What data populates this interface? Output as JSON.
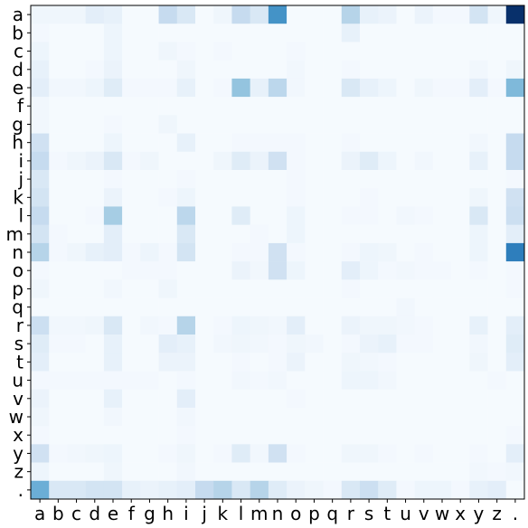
{
  "chart_data": {
    "type": "heatmap",
    "title": "",
    "xlabel": "",
    "ylabel": "",
    "x_labels": [
      "a",
      "b",
      "c",
      "d",
      "e",
      "f",
      "g",
      "h",
      "i",
      "j",
      "k",
      "l",
      "m",
      "n",
      "o",
      "p",
      "q",
      "r",
      "s",
      "t",
      "u",
      "v",
      "w",
      "x",
      "y",
      "z",
      "."
    ],
    "y_labels": [
      "a",
      "b",
      "c",
      "d",
      "e",
      "f",
      "g",
      "h",
      "i",
      "j",
      "k",
      "l",
      "m",
      "n",
      "o",
      "p",
      "q",
      "r",
      "s",
      "t",
      "u",
      "v",
      "w",
      "x",
      "y",
      "z",
      "."
    ],
    "colormap": "Blues",
    "colormap_stops": [
      "#f7fbff",
      "#deebf7",
      "#c6dbef",
      "#9ecae1",
      "#6baed6",
      "#4292c6",
      "#2171b5",
      "#08519c",
      "#08306b"
    ],
    "value_range": [
      0,
      1
    ],
    "grid": false,
    "matrix": [
      [
        0.04,
        0.04,
        0.04,
        0.1,
        0.08,
        0.01,
        0.01,
        0.25,
        0.15,
        0.01,
        0.04,
        0.25,
        0.15,
        0.62,
        0.01,
        0.01,
        0.01,
        0.3,
        0.08,
        0.06,
        0.01,
        0.06,
        0.02,
        0.02,
        0.18,
        0.04,
        1.0
      ],
      [
        0.02,
        0.01,
        0.01,
        0.01,
        0.05,
        0.01,
        0.01,
        0.01,
        0.01,
        0.01,
        0.01,
        0.01,
        0.01,
        0.01,
        0.01,
        0.01,
        0.01,
        0.08,
        0.01,
        0.01,
        0.01,
        0.01,
        0.01,
        0.01,
        0.01,
        0.01,
        0.01
      ],
      [
        0.05,
        0.01,
        0.01,
        0.01,
        0.05,
        0.01,
        0.01,
        0.04,
        0.02,
        0.01,
        0.02,
        0.01,
        0.01,
        0.01,
        0.02,
        0.01,
        0.01,
        0.01,
        0.01,
        0.01,
        0.01,
        0.01,
        0.01,
        0.01,
        0.01,
        0.01,
        0.01
      ],
      [
        0.08,
        0.01,
        0.01,
        0.02,
        0.06,
        0.01,
        0.01,
        0.01,
        0.04,
        0.01,
        0.01,
        0.01,
        0.01,
        0.01,
        0.03,
        0.01,
        0.01,
        0.02,
        0.01,
        0.01,
        0.01,
        0.01,
        0.01,
        0.01,
        0.03,
        0.01,
        0.04
      ],
      [
        0.1,
        0.03,
        0.03,
        0.05,
        0.12,
        0.02,
        0.02,
        0.02,
        0.08,
        0.01,
        0.02,
        0.4,
        0.08,
        0.28,
        0.03,
        0.01,
        0.01,
        0.15,
        0.08,
        0.05,
        0.01,
        0.04,
        0.02,
        0.02,
        0.1,
        0.02,
        0.45
      ],
      [
        0.03,
        0.01,
        0.01,
        0.01,
        0.01,
        0.01,
        0.01,
        0.01,
        0.01,
        0.01,
        0.01,
        0.01,
        0.01,
        0.01,
        0.01,
        0.01,
        0.01,
        0.01,
        0.01,
        0.01,
        0.01,
        0.01,
        0.01,
        0.01,
        0.01,
        0.01,
        0.01
      ],
      [
        0.03,
        0.01,
        0.01,
        0.01,
        0.02,
        0.01,
        0.01,
        0.04,
        0.01,
        0.01,
        0.01,
        0.01,
        0.01,
        0.01,
        0.01,
        0.01,
        0.01,
        0.01,
        0.01,
        0.01,
        0.01,
        0.01,
        0.01,
        0.01,
        0.01,
        0.01,
        0.01
      ],
      [
        0.2,
        0.01,
        0.01,
        0.01,
        0.05,
        0.01,
        0.01,
        0.01,
        0.08,
        0.01,
        0.01,
        0.02,
        0.02,
        0.02,
        0.02,
        0.01,
        0.01,
        0.02,
        0.01,
        0.01,
        0.01,
        0.01,
        0.01,
        0.01,
        0.03,
        0.01,
        0.25
      ],
      [
        0.25,
        0.02,
        0.04,
        0.06,
        0.15,
        0.02,
        0.04,
        0.01,
        0.01,
        0.01,
        0.04,
        0.12,
        0.06,
        0.2,
        0.02,
        0.01,
        0.01,
        0.06,
        0.12,
        0.05,
        0.01,
        0.03,
        0.01,
        0.01,
        0.08,
        0.01,
        0.25
      ],
      [
        0.15,
        0.01,
        0.01,
        0.01,
        0.02,
        0.01,
        0.01,
        0.01,
        0.02,
        0.01,
        0.01,
        0.01,
        0.01,
        0.01,
        0.02,
        0.01,
        0.01,
        0.01,
        0.01,
        0.01,
        0.01,
        0.01,
        0.01,
        0.01,
        0.01,
        0.01,
        0.02
      ],
      [
        0.18,
        0.01,
        0.01,
        0.01,
        0.06,
        0.01,
        0.01,
        0.02,
        0.05,
        0.01,
        0.01,
        0.01,
        0.01,
        0.01,
        0.02,
        0.01,
        0.01,
        0.01,
        0.02,
        0.01,
        0.01,
        0.01,
        0.01,
        0.01,
        0.04,
        0.01,
        0.2
      ],
      [
        0.25,
        0.01,
        0.01,
        0.02,
        0.35,
        0.01,
        0.01,
        0.01,
        0.28,
        0.01,
        0.01,
        0.12,
        0.01,
        0.01,
        0.05,
        0.01,
        0.01,
        0.02,
        0.02,
        0.01,
        0.03,
        0.02,
        0.01,
        0.01,
        0.15,
        0.01,
        0.22
      ],
      [
        0.18,
        0.02,
        0.01,
        0.01,
        0.1,
        0.01,
        0.01,
        0.01,
        0.15,
        0.01,
        0.01,
        0.01,
        0.02,
        0.01,
        0.05,
        0.01,
        0.01,
        0.01,
        0.01,
        0.01,
        0.01,
        0.01,
        0.01,
        0.01,
        0.05,
        0.01,
        0.1
      ],
      [
        0.3,
        0.02,
        0.04,
        0.08,
        0.1,
        0.02,
        0.05,
        0.02,
        0.18,
        0.01,
        0.01,
        0.02,
        0.02,
        0.2,
        0.02,
        0.01,
        0.01,
        0.02,
        0.05,
        0.04,
        0.01,
        0.02,
        0.01,
        0.01,
        0.05,
        0.01,
        0.7
      ],
      [
        0.02,
        0.01,
        0.01,
        0.01,
        0.01,
        0.02,
        0.02,
        0.02,
        0.01,
        0.01,
        0.01,
        0.06,
        0.03,
        0.2,
        0.05,
        0.01,
        0.01,
        0.1,
        0.05,
        0.02,
        0.03,
        0.02,
        0.02,
        0.01,
        0.02,
        0.01,
        0.02
      ],
      [
        0.04,
        0.01,
        0.01,
        0.01,
        0.03,
        0.01,
        0.01,
        0.04,
        0.01,
        0.01,
        0.01,
        0.01,
        0.01,
        0.01,
        0.01,
        0.01,
        0.01,
        0.02,
        0.01,
        0.01,
        0.01,
        0.01,
        0.01,
        0.01,
        0.01,
        0.01,
        0.02
      ],
      [
        0.01,
        0.01,
        0.01,
        0.01,
        0.01,
        0.01,
        0.01,
        0.01,
        0.01,
        0.01,
        0.01,
        0.01,
        0.01,
        0.01,
        0.01,
        0.01,
        0.01,
        0.01,
        0.01,
        0.01,
        0.03,
        0.01,
        0.01,
        0.01,
        0.01,
        0.01,
        0.01
      ],
      [
        0.22,
        0.03,
        0.03,
        0.04,
        0.15,
        0.01,
        0.03,
        0.02,
        0.3,
        0.01,
        0.02,
        0.05,
        0.04,
        0.03,
        0.1,
        0.01,
        0.01,
        0.06,
        0.04,
        0.04,
        0.03,
        0.02,
        0.01,
        0.01,
        0.08,
        0.01,
        0.1
      ],
      [
        0.12,
        0.02,
        0.02,
        0.01,
        0.08,
        0.01,
        0.01,
        0.1,
        0.08,
        0.01,
        0.03,
        0.04,
        0.03,
        0.02,
        0.04,
        0.03,
        0.01,
        0.02,
        0.06,
        0.08,
        0.02,
        0.02,
        0.01,
        0.01,
        0.03,
        0.01,
        0.12
      ],
      [
        0.1,
        0.01,
        0.01,
        0.01,
        0.08,
        0.01,
        0.01,
        0.06,
        0.06,
        0.01,
        0.01,
        0.02,
        0.01,
        0.02,
        0.06,
        0.01,
        0.01,
        0.04,
        0.03,
        0.02,
        0.01,
        0.01,
        0.01,
        0.01,
        0.04,
        0.01,
        0.1
      ],
      [
        0.02,
        0.02,
        0.02,
        0.02,
        0.02,
        0.02,
        0.02,
        0.01,
        0.02,
        0.01,
        0.01,
        0.03,
        0.02,
        0.03,
        0.01,
        0.01,
        0.01,
        0.05,
        0.05,
        0.03,
        0.01,
        0.01,
        0.01,
        0.01,
        0.01,
        0.02,
        0.01
      ],
      [
        0.06,
        0.01,
        0.01,
        0.01,
        0.08,
        0.01,
        0.01,
        0.01,
        0.1,
        0.01,
        0.01,
        0.01,
        0.01,
        0.01,
        0.02,
        0.01,
        0.01,
        0.01,
        0.01,
        0.01,
        0.01,
        0.01,
        0.01,
        0.01,
        0.01,
        0.01,
        0.01
      ],
      [
        0.04,
        0.01,
        0.01,
        0.01,
        0.03,
        0.01,
        0.01,
        0.01,
        0.03,
        0.01,
        0.01,
        0.01,
        0.01,
        0.01,
        0.01,
        0.01,
        0.01,
        0.01,
        0.01,
        0.01,
        0.01,
        0.01,
        0.01,
        0.01,
        0.01,
        0.01,
        0.01
      ],
      [
        0.02,
        0.01,
        0.01,
        0.01,
        0.01,
        0.01,
        0.01,
        0.01,
        0.02,
        0.01,
        0.01,
        0.01,
        0.01,
        0.01,
        0.01,
        0.01,
        0.01,
        0.01,
        0.01,
        0.01,
        0.01,
        0.01,
        0.01,
        0.01,
        0.01,
        0.01,
        0.02
      ],
      [
        0.2,
        0.02,
        0.03,
        0.04,
        0.05,
        0.01,
        0.01,
        0.02,
        0.04,
        0.01,
        0.02,
        0.12,
        0.03,
        0.2,
        0.02,
        0.01,
        0.01,
        0.04,
        0.04,
        0.02,
        0.01,
        0.02,
        0.01,
        0.01,
        0.02,
        0.01,
        0.1
      ],
      [
        0.05,
        0.01,
        0.01,
        0.01,
        0.04,
        0.01,
        0.01,
        0.01,
        0.03,
        0.01,
        0.01,
        0.01,
        0.01,
        0.01,
        0.01,
        0.01,
        0.01,
        0.01,
        0.01,
        0.01,
        0.01,
        0.01,
        0.01,
        0.01,
        0.03,
        0.02,
        0.03
      ],
      [
        0.5,
        0.15,
        0.15,
        0.18,
        0.18,
        0.08,
        0.06,
        0.08,
        0.1,
        0.25,
        0.3,
        0.15,
        0.3,
        0.12,
        0.06,
        0.04,
        0.02,
        0.15,
        0.22,
        0.12,
        0.02,
        0.05,
        0.05,
        0.02,
        0.08,
        0.1,
        0.01
      ]
    ]
  }
}
